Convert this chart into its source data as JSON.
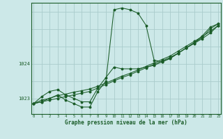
{
  "background_color": "#cce8e8",
  "grid_color": "#aacccc",
  "line_color": "#1a5c28",
  "marker_color": "#1a5c28",
  "xlabel": "Graphe pression niveau de la mer (hPa)",
  "yticks": [
    1023,
    1024
  ],
  "xticks": [
    0,
    1,
    2,
    3,
    4,
    5,
    6,
    7,
    8,
    9,
    10,
    11,
    12,
    13,
    14,
    15,
    16,
    17,
    18,
    19,
    20,
    21,
    22,
    23
  ],
  "xlim": [
    -0.3,
    23.3
  ],
  "ylim": [
    1022.55,
    1025.75
  ],
  "series": [
    [
      1022.85,
      1022.95,
      1023.0,
      1023.1,
      1022.95,
      1022.85,
      1022.75,
      1022.75,
      1023.2,
      1023.5,
      1025.55,
      1025.6,
      1025.55,
      1025.45,
      1025.1,
      1024.1,
      1024.05,
      1024.15,
      1024.3,
      1024.45,
      1024.6,
      1024.8,
      1025.05,
      1025.15
    ],
    [
      1022.85,
      1023.05,
      1023.2,
      1023.25,
      1023.1,
      1023.0,
      1022.9,
      1022.9,
      1023.3,
      1023.6,
      1023.9,
      1023.85,
      1023.85,
      1023.85,
      1023.9,
      1023.95,
      1024.05,
      1024.15,
      1024.3,
      1024.45,
      1024.6,
      1024.75,
      1025.0,
      1025.15
    ],
    [
      1022.85,
      1022.9,
      1022.95,
      1023.0,
      1023.05,
      1023.1,
      1023.15,
      1023.2,
      1023.3,
      1023.4,
      1023.5,
      1023.6,
      1023.68,
      1023.78,
      1023.88,
      1023.98,
      1024.08,
      1024.18,
      1024.3,
      1024.45,
      1024.58,
      1024.72,
      1024.88,
      1025.1
    ],
    [
      1022.85,
      1022.9,
      1023.0,
      1023.08,
      1023.12,
      1023.18,
      1023.22,
      1023.27,
      1023.35,
      1023.44,
      1023.54,
      1023.64,
      1023.72,
      1023.82,
      1023.92,
      1024.02,
      1024.12,
      1024.22,
      1024.36,
      1024.5,
      1024.64,
      1024.78,
      1024.93,
      1025.1
    ]
  ]
}
